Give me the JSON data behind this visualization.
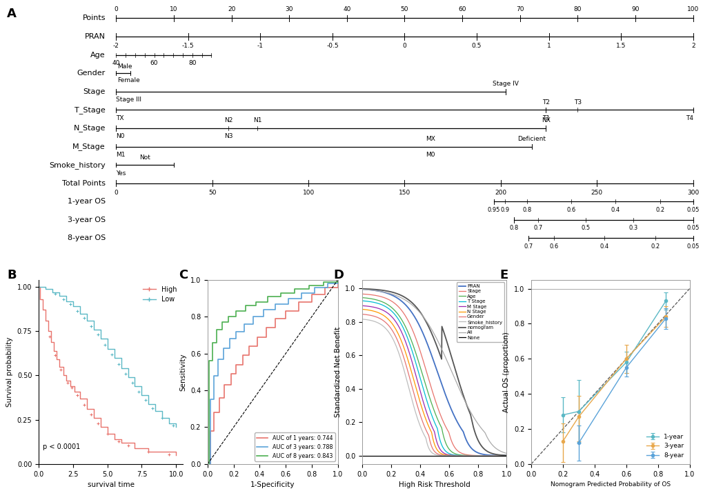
{
  "panel_A": {
    "row_labels": [
      "Points",
      "PRAN",
      "Age",
      "Gender",
      "Stage",
      "T_Stage",
      "N_Stage",
      "M_Stage",
      "Smoke_history",
      "Total Points",
      "1-year OS",
      "3-year OS",
      "8-year OS"
    ],
    "points_ticks": [
      0,
      10,
      20,
      30,
      40,
      50,
      60,
      70,
      80,
      90,
      100
    ],
    "pran_ticks": [
      -2,
      -1.5,
      -1,
      -0.5,
      0,
      0.5,
      1,
      1.5,
      2
    ],
    "total_points_ticks": [
      0,
      50,
      100,
      150,
      200,
      250,
      300
    ],
    "os1_ticks": [
      0.95,
      0.9,
      0.8,
      0.6,
      0.4,
      0.2,
      0.05
    ],
    "os3_ticks": [
      0.8,
      0.7,
      0.5,
      0.3,
      0.05
    ],
    "os8_ticks": [
      0.7,
      0.6,
      0.4,
      0.2,
      0.05
    ]
  },
  "panel_B": {
    "xlabel": "survival time",
    "ylabel": "Survival probability",
    "pvalue": "p < 0.0001",
    "high_color": "#E8736C",
    "low_color": "#5BB8C5"
  },
  "panel_C": {
    "xlabel": "1-Specificity",
    "ylabel": "Sensitivity",
    "auc_1year": 0.744,
    "auc_3year": 0.788,
    "auc_8year": 0.843,
    "color_1year": "#E8736C",
    "color_3year": "#5BA3D9",
    "color_8year": "#4CAF50"
  },
  "panel_D": {
    "xlabel": "High Risk Threshold",
    "ylabel": "Standardized Net Benefit",
    "legend_items": [
      "PRAN",
      "Stage",
      "Age",
      "T Stage",
      "M Stage",
      "N Stage",
      "Gender",
      "Smoke_history",
      "nomogram",
      "All",
      "None"
    ],
    "legend_colors": [
      "#4472C4",
      "#E8736C",
      "#4CAF50",
      "#00BCD4",
      "#9C27B0",
      "#FF9800",
      "#E57373",
      "#BDBDBD",
      "#555555",
      "#AAAAAA",
      "#000000"
    ]
  },
  "panel_E": {
    "xlabel": "Nomogram Predicted Probability of OS",
    "ylabel": "Actual OS (proportion)",
    "legend_items": [
      "1-year",
      "3-year",
      "8-year"
    ],
    "colors": [
      "#5BB8C5",
      "#E8A84C",
      "#5BA3D9"
    ]
  }
}
